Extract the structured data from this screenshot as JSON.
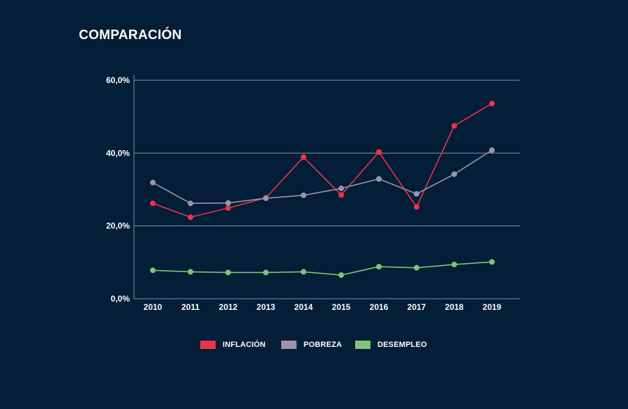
{
  "title": "COMPARACIÓN",
  "colors": {
    "background": "#031e36",
    "grid": "#8592a0",
    "axis": "#8592a0",
    "text": "#ffffff"
  },
  "chart_data": {
    "type": "line",
    "title": "COMPARACIÓN",
    "xlabel": "",
    "ylabel": "",
    "x": [
      "2010",
      "2011",
      "2012",
      "2013",
      "2014",
      "2015",
      "2016",
      "2017",
      "2018",
      "2019"
    ],
    "ylim": [
      0,
      60
    ],
    "yticks": [
      0,
      20,
      40,
      60
    ],
    "ytick_labels": [
      "0,0%",
      "20,0%",
      "40,0%",
      "60,0%"
    ],
    "grid": true,
    "legend_position": "bottom-center",
    "series": [
      {
        "name": "INFLACIÓN",
        "color": "#e8354b",
        "values": [
          26.2,
          22.4,
          24.9,
          27.7,
          38.9,
          28.5,
          40.3,
          25.2,
          47.5,
          53.6
        ]
      },
      {
        "name": "POBREZA",
        "color": "#9d93ab",
        "values": [
          31.9,
          26.2,
          26.3,
          27.6,
          28.4,
          30.3,
          32.9,
          28.8,
          34.2,
          40.8
        ]
      },
      {
        "name": "DESEMPLEO",
        "color": "#7fc47a",
        "values": [
          7.8,
          7.4,
          7.2,
          7.2,
          7.4,
          6.5,
          8.8,
          8.5,
          9.4,
          10.1
        ]
      }
    ]
  }
}
